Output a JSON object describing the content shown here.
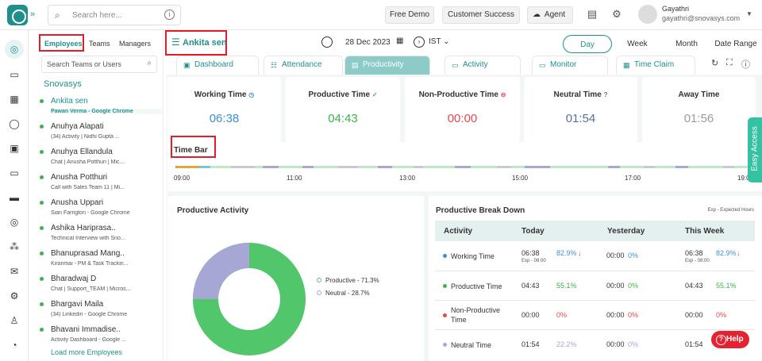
{
  "topbar": {
    "search_placeholder": "Search here...",
    "buttons": [
      "Free Demo",
      "Customer Success",
      "Agent"
    ],
    "user_name": "Gayathri",
    "user_email": "gayathri@snovasys.com"
  },
  "employee_panel": {
    "tabs": [
      "Employees",
      "Teams",
      "Managers"
    ],
    "search_placeholder": "Search Teams or Users",
    "org": "Snovasys",
    "employees": [
      {
        "name": "Ankita sen",
        "sub": "Pawan Verma - Google Chrome",
        "status": "online"
      },
      {
        "name": "Anuhya Alapati",
        "sub": "(34) Activity | Nidhi Gupta ...",
        "status": "online"
      },
      {
        "name": "Anuhya Ellandula",
        "sub": "Chat | Anusha Potthuri | Mic...",
        "status": "online"
      },
      {
        "name": "Anusha Potthuri",
        "sub": "Call with Sales Team 11 | Mi...",
        "status": "online"
      },
      {
        "name": "Anusha Uppari",
        "sub": "Sian Farrigton - Google Chrome",
        "status": "online"
      },
      {
        "name": "Ashika Hariprasa..",
        "sub": "Technical Interview with Sno...",
        "status": "online"
      },
      {
        "name": "Bhanuprasad Mang..",
        "sub": "Kiranmai - PM & Task Trackin...",
        "status": "online"
      },
      {
        "name": "Bharadwaj D",
        "sub": "Chat | Support_TEAM | Micros...",
        "status": "online"
      },
      {
        "name": "Bhargavi Maila",
        "sub": "(34) Linkedin - Google Chrome",
        "status": "online"
      },
      {
        "name": "Bhavani Immadise..",
        "sub": "Activity Dashboard - Google ...",
        "status": "online"
      }
    ],
    "load_more": "Load more Employees"
  },
  "context": {
    "employee": "Ankita sen",
    "date": "28 Dec 2023",
    "timezone": "IST",
    "periods": [
      "Day",
      "Week",
      "Month",
      "Date Range"
    ],
    "active_period": "Day"
  },
  "tabs": [
    "Dashboard",
    "Attendance",
    "Productivity",
    "Activity",
    "Monitor",
    "Time Claim"
  ],
  "active_tab": "Productivity",
  "summary": [
    {
      "label": "Working Time",
      "value": "06:38",
      "color": "#3c8fd1"
    },
    {
      "label": "Productive Time",
      "value": "04:43",
      "color": "#39b54a"
    },
    {
      "label": "Non-Productive Time",
      "value": "00:00",
      "color": "#e5484d"
    },
    {
      "label": "Neutral Time",
      "value": "01:54",
      "color": "#5a6f9d"
    },
    {
      "label": "Away Time",
      "value": "01:56",
      "color": "#9a9a9a"
    }
  ],
  "timebar": {
    "title": "Time Bar",
    "ticks": [
      "09:00",
      "11:00",
      "13:00",
      "15:00",
      "17:00",
      "19:00"
    ]
  },
  "productive_activity": {
    "title": "Productive Activity",
    "legend": [
      "Productive - 71.3%",
      "Neutral - 28.7%"
    ],
    "colors": [
      "#51c66a",
      "#a7a7d6"
    ]
  },
  "breakdown": {
    "title": "Productive Break Down",
    "note": "Exp - Expected Hours",
    "headers": [
      "Activity",
      "Today",
      "Yesterday",
      "This Week"
    ],
    "rows": [
      {
        "label": "Working Time",
        "dot": "#3c8fd1",
        "today": "06:38",
        "today_sub": "Exp - 08:00",
        "today_pct": "82.9%",
        "today_arrow": "↓",
        "yest": "00:00",
        "yest_pct": "0%",
        "week": "06:38",
        "week_sub": "Exp - 08:00",
        "week_pct": "82.9%",
        "week_arrow": "↓"
      },
      {
        "label": "Productive Time",
        "dot": "#39b54a",
        "today": "04:43",
        "today_pct": "55.1%",
        "yest": "00:00",
        "yest_pct": "0%",
        "week": "04:43",
        "week_pct": "55.1%"
      },
      {
        "label": "Non-Productive Time",
        "dot": "#e5484d",
        "today": "00:00",
        "today_pct": "0%",
        "yest": "00:00",
        "yest_pct": "0%",
        "week": "00:00",
        "week_pct": "0%"
      },
      {
        "label": "Neutral Time",
        "dot": "#a7a7d6",
        "today": "01:54",
        "today_pct": "22.2%",
        "yest": "00:00",
        "yest_pct": "0%",
        "week": "01:54"
      }
    ]
  },
  "easy_access": "Easy Access",
  "help": "Help"
}
